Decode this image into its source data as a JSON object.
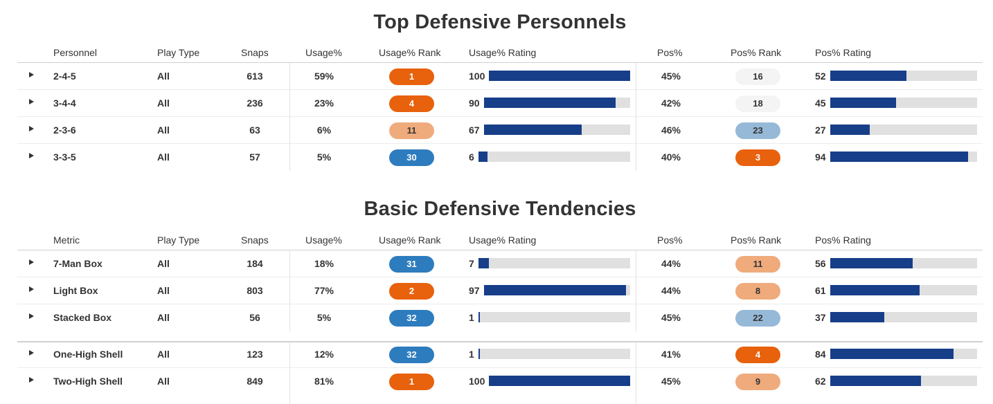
{
  "colors": {
    "rank_dark_orange": "#e8610d",
    "rank_light_orange": "#efab7c",
    "rank_light_white": "#f4f4f4",
    "rank_light_blue": "#96b9d8",
    "rank_dark_blue": "#2d7cbe",
    "bar_fill": "#173e88",
    "bar_track": "#e0e0e0"
  },
  "sections": [
    {
      "title": "Top Defensive Personnels",
      "headers": {
        "name": "Personnel",
        "play_type": "Play Type",
        "snaps": "Snaps",
        "usage": "Usage%",
        "usage_rank": "Usage% Rank",
        "usage_rating": "Usage% Rating",
        "pos": "Pos%",
        "pos_rank": "Pos% Rank",
        "pos_rating": "Pos% Rating"
      },
      "rows": [
        {
          "name": "2-4-5",
          "play_type": "All",
          "snaps": "613",
          "usage": "59%",
          "usage_rank": "1",
          "usage_rating": 100,
          "pos": "45%",
          "pos_rank": "16",
          "pos_rating": 52
        },
        {
          "name": "3-4-4",
          "play_type": "All",
          "snaps": "236",
          "usage": "23%",
          "usage_rank": "4",
          "usage_rating": 90,
          "pos": "42%",
          "pos_rank": "18",
          "pos_rating": 45
        },
        {
          "name": "2-3-6",
          "play_type": "All",
          "snaps": "63",
          "usage": "6%",
          "usage_rank": "11",
          "usage_rating": 67,
          "pos": "46%",
          "pos_rank": "23",
          "pos_rating": 27
        },
        {
          "name": "3-3-5",
          "play_type": "All",
          "snaps": "57",
          "usage": "5%",
          "usage_rank": "30",
          "usage_rating": 6,
          "pos": "40%",
          "pos_rank": "3",
          "pos_rating": 94
        }
      ]
    },
    {
      "title": "Basic Defensive Tendencies",
      "headers": {
        "name": "Metric",
        "play_type": "Play Type",
        "snaps": "Snaps",
        "usage": "Usage%",
        "usage_rank": "Usage% Rank",
        "usage_rating": "Usage% Rating",
        "pos": "Pos%",
        "pos_rank": "Pos% Rank",
        "pos_rating": "Pos% Rating"
      },
      "rows": [
        {
          "name": "7-Man Box",
          "play_type": "All",
          "snaps": "184",
          "usage": "18%",
          "usage_rank": "31",
          "usage_rating": 7,
          "pos": "44%",
          "pos_rank": "11",
          "pos_rating": 56
        },
        {
          "name": "Light Box",
          "play_type": "All",
          "snaps": "803",
          "usage": "77%",
          "usage_rank": "2",
          "usage_rating": 97,
          "pos": "44%",
          "pos_rank": "8",
          "pos_rating": 61
        },
        {
          "name": "Stacked Box",
          "play_type": "All",
          "snaps": "56",
          "usage": "5%",
          "usage_rank": "32",
          "usage_rating": 1,
          "pos": "45%",
          "pos_rank": "22",
          "pos_rating": 37
        },
        {
          "name": "One-High Shell",
          "play_type": "All",
          "snaps": "123",
          "usage": "12%",
          "usage_rank": "32",
          "usage_rating": 1,
          "pos": "41%",
          "pos_rank": "4",
          "pos_rating": 84
        },
        {
          "name": "Two-High Shell",
          "play_type": "All",
          "snaps": "849",
          "usage": "81%",
          "usage_rank": "1",
          "usage_rating": 100,
          "pos": "45%",
          "pos_rank": "9",
          "pos_rating": 62
        }
      ]
    }
  ]
}
